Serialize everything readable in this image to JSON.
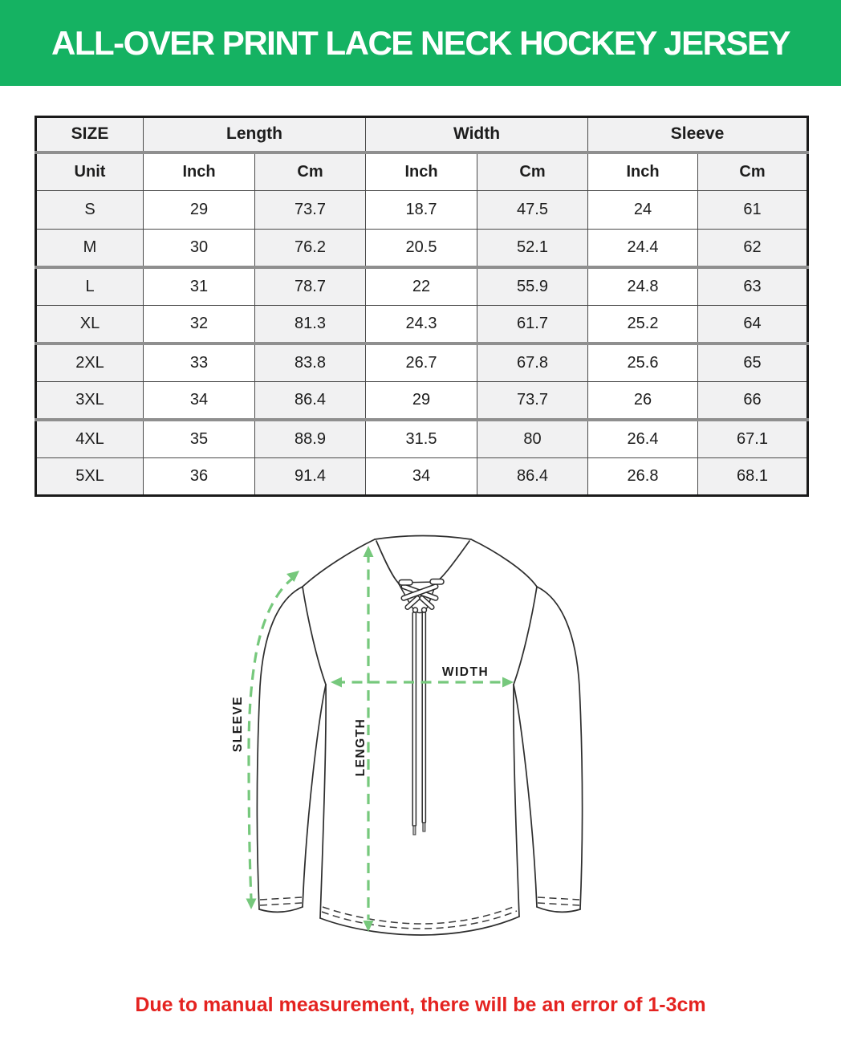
{
  "banner": {
    "title": "ALL-OVER PRINT LACE NECK HOCKEY JERSEY",
    "background_color": "#15b262",
    "text_color": "#ffffff"
  },
  "table": {
    "group_headers": [
      {
        "label": "SIZE",
        "span": 1
      },
      {
        "label": "Length",
        "span": 2
      },
      {
        "label": "Width",
        "span": 2
      },
      {
        "label": "Sleeve",
        "span": 2
      }
    ],
    "unit_row": [
      "Unit",
      "Inch",
      "Cm",
      "Inch",
      "Cm",
      "Inch",
      "Cm"
    ],
    "rows": [
      [
        "S",
        "29",
        "73.7",
        "18.7",
        "47.5",
        "24",
        "61"
      ],
      [
        "M",
        "30",
        "76.2",
        "20.5",
        "52.1",
        "24.4",
        "62"
      ],
      [
        "L",
        "31",
        "78.7",
        "22",
        "55.9",
        "24.8",
        "63"
      ],
      [
        "XL",
        "32",
        "81.3",
        "24.3",
        "61.7",
        "25.2",
        "64"
      ],
      [
        "2XL",
        "33",
        "83.8",
        "26.7",
        "67.8",
        "25.6",
        "65"
      ],
      [
        "3XL",
        "34",
        "86.4",
        "29",
        "73.7",
        "26",
        "66"
      ],
      [
        "4XL",
        "35",
        "88.9",
        "31.5",
        "80",
        "26.4",
        "67.1"
      ],
      [
        "5XL",
        "36",
        "91.4",
        "34",
        "86.4",
        "26.8",
        "68.1"
      ]
    ],
    "shaded_cell_color": "#f1f1f2"
  },
  "diagram": {
    "labels": {
      "sleeve": "SLEEVE",
      "width": "WIDTH",
      "length": "LENGTH"
    },
    "arrow_color": "#76c87c",
    "outline_color": "#2d2d2d"
  },
  "footnote": {
    "text": "Due to manual measurement, there will be an error of 1-3cm",
    "color": "#e42320"
  }
}
